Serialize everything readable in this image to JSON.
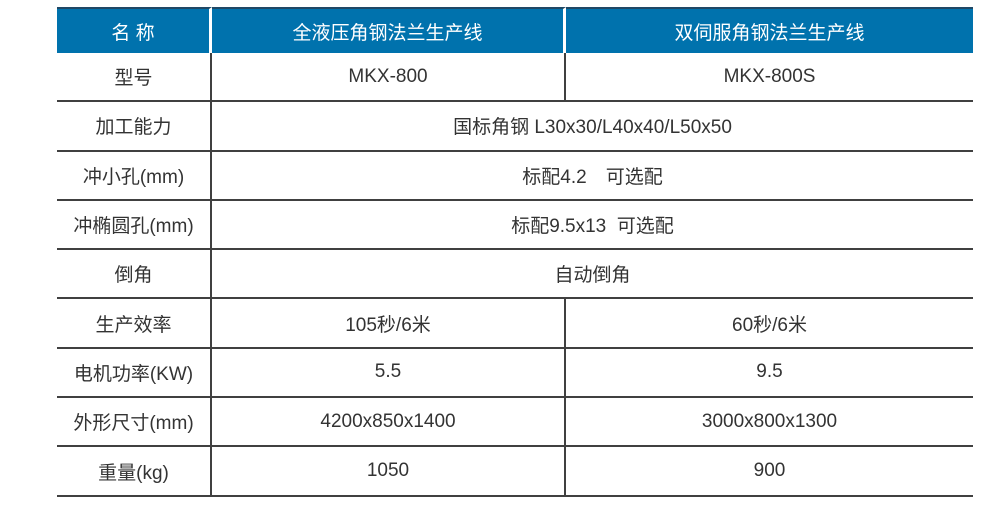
{
  "colors": {
    "header_bg": "#0072AD",
    "header_text": "#FFFFFF",
    "header_top_edge": "#1F4866",
    "grid_line": "#404040",
    "body_text": "#333333",
    "page_bg": "#FFFFFF"
  },
  "table": {
    "header": {
      "name_col": "名 称",
      "product_a": "全液压角钢法兰生产线",
      "product_b": "双伺服角钢法兰生产线"
    },
    "rows": [
      {
        "label": "型号",
        "values": [
          "MKX-800",
          "MKX-800S"
        ]
      },
      {
        "label": "加工能力",
        "values": [
          "国标角钢 L30x30/L40x40/L50x50"
        ],
        "span": true
      },
      {
        "label": "冲小孔(mm)",
        "values": [
          "标配4.2　可选配"
        ],
        "span": true
      },
      {
        "label": "冲椭圆孔(mm)",
        "values": [
          "标配9.5x13  可选配"
        ],
        "span": true
      },
      {
        "label": "倒角",
        "values": [
          "自动倒角"
        ],
        "span": true
      },
      {
        "label": "生产效率",
        "values": [
          "105秒/6米",
          "60秒/6米"
        ]
      },
      {
        "label": "电机功率(KW)",
        "values": [
          "5.5",
          "9.5"
        ]
      },
      {
        "label": "外形尺寸(mm)",
        "values": [
          "4200x850x1400",
          "3000x800x1300"
        ]
      },
      {
        "label": "重量(kg)",
        "values": [
          "1050",
          "900"
        ]
      }
    ]
  }
}
